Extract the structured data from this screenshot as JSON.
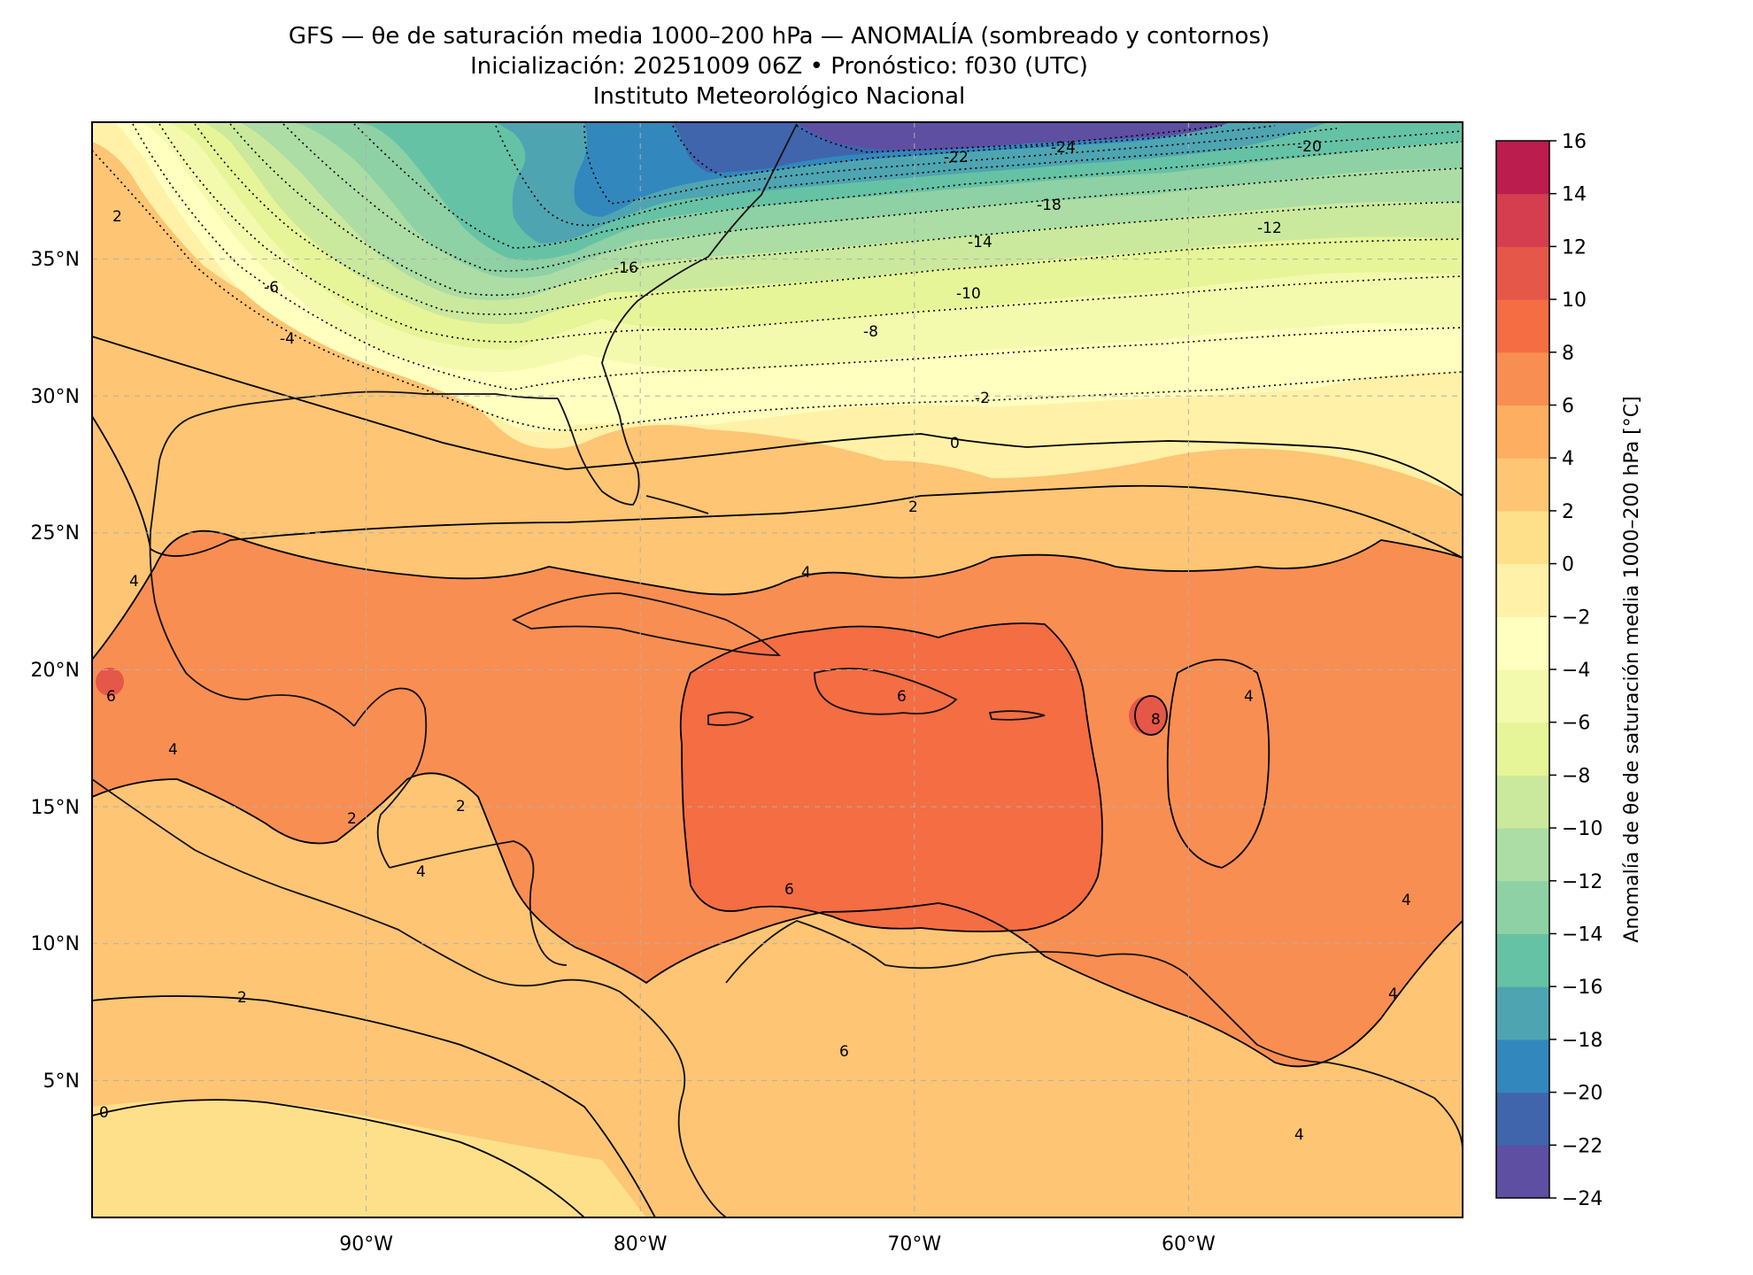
{
  "titles": {
    "line1": "GFS — θe de saturación media 1000–200 hPa — ANOMALÍA (sombreado y contornos)",
    "line2": "Inicialización: 20251009 06Z   •   Pronóstico: f030 (UTC)",
    "line3": "Instituto Meteorológico Nacional"
  },
  "axes": {
    "lon_ticks": [
      "90°W",
      "80°W",
      "70°W",
      "60°W"
    ],
    "lat_ticks": [
      "35°N",
      "30°N",
      "25°N",
      "20°N",
      "15°N",
      "10°N",
      "5°N"
    ],
    "lon_range": [
      -100,
      -50
    ],
    "lat_range": [
      0,
      40
    ]
  },
  "colorbar": {
    "label": "Anomalía de θe de saturación media 1000–200 hPa [°C]",
    "ticks": [
      "16",
      "14",
      "12",
      "10",
      "8",
      "6",
      "4",
      "2",
      "0",
      "−2",
      "−4",
      "−6",
      "−8",
      "−10",
      "−12",
      "−14",
      "−16",
      "−18",
      "−20",
      "−22",
      "−24"
    ],
    "colors_low_to_high": [
      "#5e4fa2",
      "#4065ad",
      "#3288bd",
      "#4ea5b1",
      "#66c2a5",
      "#8ed1a4",
      "#abdda4",
      "#cbe99d",
      "#e6f598",
      "#f3faad",
      "#ffffbf",
      "#fff1a8",
      "#fee08b",
      "#fdc574",
      "#fdae61",
      "#f98e52",
      "#f46d43",
      "#e55749",
      "#d53e4f",
      "#bb1e4e",
      "#9e0142"
    ]
  },
  "contour_labels": [
    "-24",
    "-22",
    "-20",
    "-18",
    "-16",
    "-14",
    "-12",
    "-10",
    "-8",
    "-6",
    "-4",
    "-2",
    "0",
    "2",
    "4",
    "6",
    "8"
  ],
  "colors": {
    "frame": "#000000",
    "coast": "#111111",
    "grid": "#b0b0b0"
  }
}
